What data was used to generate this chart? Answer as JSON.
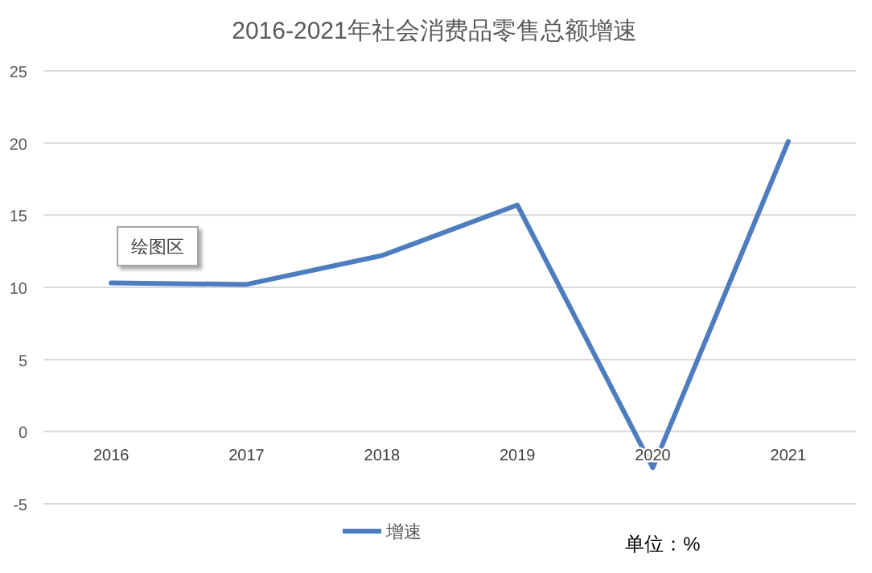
{
  "chart_data": {
    "type": "line",
    "title": "2016-2021年社会消费品零售总额增速",
    "categories": [
      "2016",
      "2017",
      "2018",
      "2019",
      "2020",
      "2021"
    ],
    "series": [
      {
        "name": "增速",
        "color": "#4e7dbf",
        "values": [
          10.3,
          10.2,
          12.2,
          15.7,
          -2.5,
          20.1
        ]
      }
    ],
    "ylim": [
      -5,
      25
    ],
    "yticks": [
      -5,
      0,
      5,
      10,
      15,
      20,
      25
    ],
    "grid": "y",
    "legend": "bottom",
    "annotations": [
      "绘图区",
      "单位：%"
    ]
  }
}
